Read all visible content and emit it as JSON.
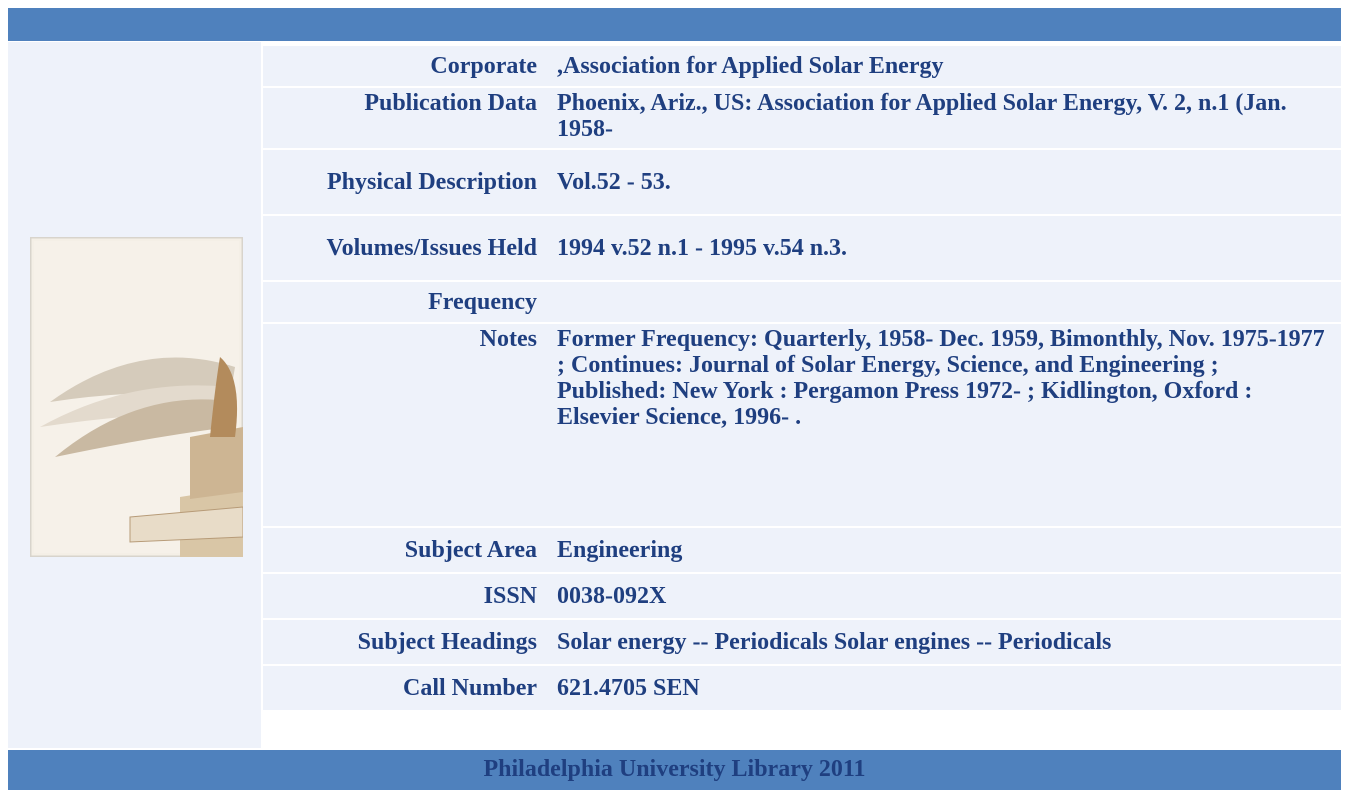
{
  "record": {
    "rows": [
      {
        "label": "Corporate",
        "value": ",Association for Applied Solar Energy"
      },
      {
        "label": "Publication Data",
        "value": "Phoenix, Ariz., US: Association for Applied Solar Energy, V. 2, n.1 (Jan. 1958-"
      },
      {
        "label": "Physical Description",
        "value": "Vol.52 - 53."
      },
      {
        "label": "Volumes/Issues Held",
        "value": "1994 v.52 n.1 - 1995 v.54 n.3."
      },
      {
        "label": "Frequency"
      },
      {
        "label": "Notes",
        "value": "Former Frequency: Quarterly, 1958- Dec. 1959, Bimonthly, Nov. 1975-1977 ; Continues: Journal of Solar Energy, Science, and Engineering ; Published: New York : Pergamon Press 1972- ; Kidlington, Oxford : Elsevier Science, 1996- ."
      },
      {
        "label": "Subject Area",
        "value": "Engineering"
      },
      {
        "label": "ISSN",
        "value": "0038-092X"
      },
      {
        "label": "Subject Headings",
        "value": "Solar energy -- Periodicals Solar engines -- Periodicals"
      },
      {
        "label": "Call Number",
        "value": "621.4705 SEN"
      }
    ]
  },
  "footer": {
    "text": "Philadelphia University Library 2011"
  }
}
